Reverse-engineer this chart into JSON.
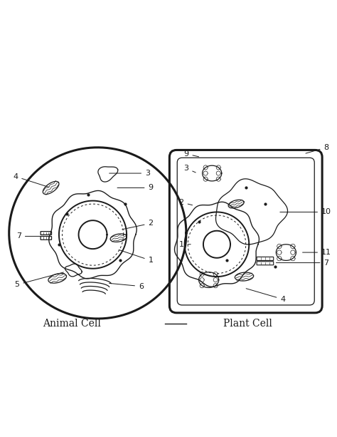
{
  "background_color": "#ffffff",
  "line_color": "#1a1a1a",
  "animal_cell_label": "Animal Cell",
  "plant_cell_label": "Plant Cell",
  "label_fontsize": 9,
  "number_fontsize": 8,
  "fig_width": 4.74,
  "fig_height": 6.13,
  "dpi": 100
}
